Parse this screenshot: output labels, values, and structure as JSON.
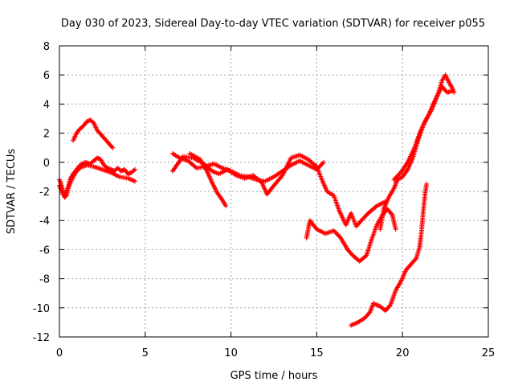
{
  "chart_data": {
    "type": "scatter",
    "title": "Day 030 of 2023, Sidereal Day-to-day VTEC variation (SDTVAR) for receiver p055",
    "xlabel": "GPS time / hours",
    "ylabel": "SDTVAR / TECUs",
    "xlim": [
      0,
      25
    ],
    "ylim": [
      -12,
      8
    ],
    "xticks": [
      0,
      5,
      10,
      15,
      20,
      25
    ],
    "yticks": [
      -12,
      -10,
      -8,
      -6,
      -4,
      -2,
      0,
      2,
      4,
      6,
      8
    ],
    "grid": true,
    "legend": "none",
    "marker": "plus",
    "color": "#ff0000",
    "series": [
      {
        "points": [
          [
            0.0,
            -1.2
          ],
          [
            0.1,
            -1.5
          ],
          [
            0.2,
            -2.0
          ],
          [
            0.3,
            -2.4
          ],
          [
            0.4,
            -2.3
          ],
          [
            0.5,
            -1.9
          ],
          [
            0.6,
            -1.2
          ],
          [
            0.8,
            -0.8
          ],
          [
            1.0,
            -0.5
          ],
          [
            1.2,
            -0.2
          ],
          [
            1.5,
            0.0
          ],
          [
            1.8,
            -0.1
          ],
          [
            2.0,
            0.1
          ],
          [
            2.2,
            0.3
          ],
          [
            2.4,
            0.2
          ],
          [
            2.6,
            -0.2
          ],
          [
            2.8,
            -0.4
          ],
          [
            3.0,
            -0.5
          ],
          [
            3.2,
            -0.6
          ],
          [
            3.4,
            -0.4
          ],
          [
            3.6,
            -0.6
          ],
          [
            3.8,
            -0.5
          ],
          [
            4.0,
            -0.8
          ],
          [
            4.2,
            -0.7
          ],
          [
            4.4,
            -0.5
          ]
        ]
      },
      {
        "points": [
          [
            0.8,
            1.5
          ],
          [
            1.0,
            2.0
          ],
          [
            1.2,
            2.3
          ],
          [
            1.4,
            2.5
          ],
          [
            1.6,
            2.8
          ],
          [
            1.8,
            2.9
          ],
          [
            2.0,
            2.7
          ],
          [
            2.2,
            2.2
          ],
          [
            2.5,
            1.8
          ],
          [
            2.8,
            1.4
          ],
          [
            3.1,
            1.0
          ]
        ]
      },
      {
        "points": [
          [
            0.0,
            -1.6
          ],
          [
            0.2,
            -2.2
          ],
          [
            0.4,
            -2.0
          ],
          [
            0.6,
            -1.5
          ],
          [
            0.8,
            -1.0
          ],
          [
            1.0,
            -0.6
          ],
          [
            1.3,
            -0.3
          ],
          [
            1.6,
            -0.2
          ],
          [
            2.0,
            -0.3
          ],
          [
            2.5,
            -0.5
          ],
          [
            3.0,
            -0.7
          ],
          [
            3.5,
            -1.0
          ],
          [
            4.0,
            -1.1
          ],
          [
            4.4,
            -1.3
          ]
        ]
      },
      {
        "points": [
          [
            6.6,
            0.6
          ],
          [
            7.0,
            0.3
          ],
          [
            7.5,
            0.1
          ],
          [
            8.0,
            -0.4
          ],
          [
            8.5,
            -0.3
          ],
          [
            9.0,
            -0.1
          ],
          [
            9.5,
            -0.4
          ],
          [
            10.0,
            -0.6
          ],
          [
            10.5,
            -0.9
          ],
          [
            11.0,
            -1.0
          ],
          [
            11.5,
            -1.2
          ],
          [
            12.0,
            -1.3
          ],
          [
            12.5,
            -1.0
          ],
          [
            13.0,
            -0.6
          ],
          [
            13.5,
            -0.2
          ],
          [
            14.0,
            0.1
          ],
          [
            14.5,
            -0.2
          ],
          [
            15.0,
            -0.5
          ],
          [
            15.4,
            0.0
          ]
        ]
      },
      {
        "points": [
          [
            6.6,
            -0.6
          ],
          [
            7.2,
            0.4
          ],
          [
            7.8,
            0.3
          ],
          [
            8.4,
            -0.1
          ],
          [
            8.9,
            -0.6
          ],
          [
            9.3,
            -0.8
          ],
          [
            9.8,
            -0.5
          ],
          [
            10.3,
            -0.9
          ],
          [
            10.8,
            -1.1
          ],
          [
            11.3,
            -0.9
          ],
          [
            11.8,
            -1.4
          ],
          [
            12.1,
            -2.2
          ],
          [
            12.5,
            -1.6
          ],
          [
            13.0,
            -0.9
          ],
          [
            13.5,
            0.3
          ],
          [
            14.0,
            0.5
          ],
          [
            14.5,
            0.2
          ],
          [
            15.0,
            -0.3
          ],
          [
            15.3,
            -1.2
          ],
          [
            15.6,
            -2.0
          ],
          [
            16.0,
            -2.3
          ],
          [
            16.3,
            -3.3
          ],
          [
            16.7,
            -4.3
          ],
          [
            17.0,
            -3.5
          ],
          [
            17.3,
            -4.4
          ],
          [
            17.6,
            -4.0
          ],
          [
            18.0,
            -3.5
          ],
          [
            18.5,
            -3.0
          ],
          [
            19.0,
            -2.7
          ]
        ]
      },
      {
        "points": [
          [
            7.6,
            0.6
          ],
          [
            8.2,
            0.2
          ],
          [
            8.6,
            -0.6
          ],
          [
            8.9,
            -1.4
          ],
          [
            9.2,
            -2.1
          ],
          [
            9.5,
            -2.6
          ],
          [
            9.7,
            -3.0
          ]
        ]
      },
      {
        "points": [
          [
            14.4,
            -5.2
          ],
          [
            14.6,
            -4.0
          ],
          [
            15.0,
            -4.6
          ],
          [
            15.5,
            -4.9
          ],
          [
            16.0,
            -4.7
          ],
          [
            16.4,
            -5.2
          ],
          [
            16.8,
            -6.0
          ],
          [
            17.1,
            -6.4
          ],
          [
            17.5,
            -6.8
          ],
          [
            17.9,
            -6.4
          ],
          [
            18.2,
            -5.3
          ],
          [
            18.5,
            -4.3
          ],
          [
            18.8,
            -3.7
          ],
          [
            19.1,
            -3.2
          ],
          [
            19.4,
            -3.6
          ],
          [
            19.6,
            -4.6
          ]
        ]
      },
      {
        "points": [
          [
            17.0,
            -11.2
          ],
          [
            17.4,
            -11.0
          ],
          [
            17.8,
            -10.7
          ],
          [
            18.1,
            -10.3
          ],
          [
            18.3,
            -9.7
          ],
          [
            18.7,
            -9.9
          ],
          [
            19.0,
            -10.2
          ],
          [
            19.3,
            -9.8
          ],
          [
            19.6,
            -8.8
          ],
          [
            19.9,
            -8.2
          ],
          [
            20.2,
            -7.4
          ],
          [
            20.5,
            -7.0
          ],
          [
            20.8,
            -6.6
          ],
          [
            21.0,
            -5.8
          ],
          [
            21.1,
            -4.8
          ],
          [
            21.2,
            -3.5
          ],
          [
            21.3,
            -2.3
          ],
          [
            21.4,
            -1.5
          ]
        ]
      },
      {
        "points": [
          [
            18.7,
            -4.6
          ],
          [
            18.9,
            -3.2
          ],
          [
            19.2,
            -2.4
          ],
          [
            19.5,
            -1.8
          ],
          [
            19.7,
            -1.2
          ],
          [
            20.0,
            -1.0
          ],
          [
            20.3,
            -0.5
          ],
          [
            20.6,
            0.3
          ],
          [
            20.9,
            1.5
          ],
          [
            21.2,
            2.5
          ],
          [
            21.5,
            3.2
          ],
          [
            21.8,
            4.0
          ],
          [
            22.1,
            4.8
          ],
          [
            22.3,
            5.6
          ],
          [
            22.5,
            6.0
          ],
          [
            22.7,
            5.5
          ],
          [
            22.9,
            5.1
          ],
          [
            23.0,
            4.8
          ]
        ]
      },
      {
        "points": [
          [
            19.5,
            -1.2
          ],
          [
            19.9,
            -0.7
          ],
          [
            20.3,
            0.0
          ],
          [
            20.7,
            1.0
          ],
          [
            21.0,
            2.0
          ],
          [
            21.3,
            2.8
          ],
          [
            21.7,
            3.6
          ],
          [
            22.0,
            4.5
          ],
          [
            22.3,
            5.2
          ],
          [
            22.6,
            4.8
          ],
          [
            22.9,
            4.9
          ]
        ]
      }
    ]
  }
}
